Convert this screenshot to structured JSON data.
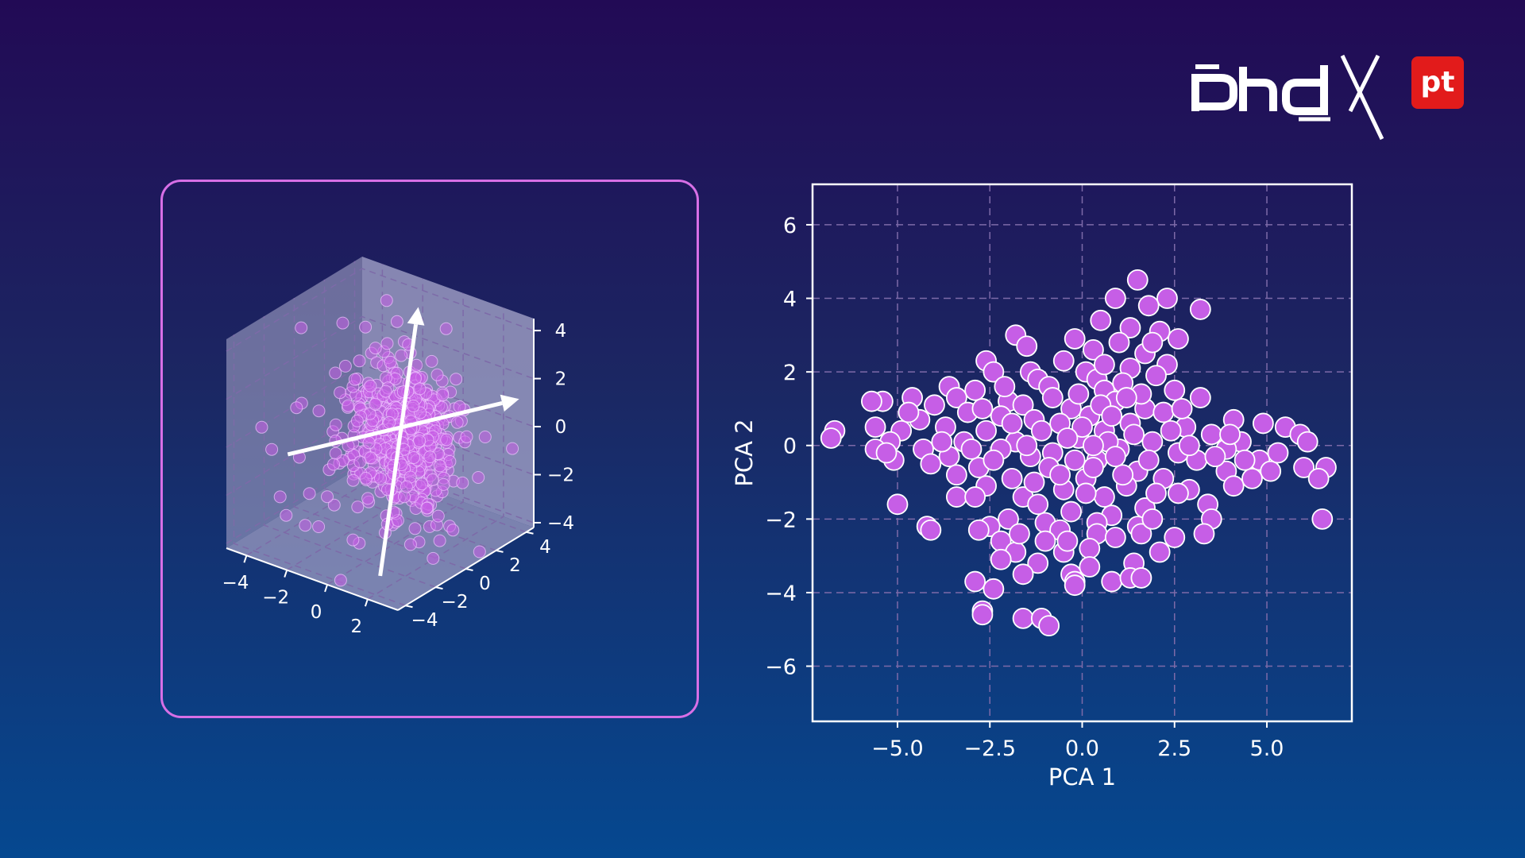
{
  "logo": {
    "text": "phd",
    "badge": "pt"
  },
  "colors": {
    "point_fill": "#c65ee6",
    "point_stroke": "#ffffff",
    "panel_border": "#d76fe6",
    "grid": "#7d6aa8",
    "axis": "#ffffff"
  },
  "chart_data": [
    {
      "type": "scatter",
      "projection": "3d",
      "title": "",
      "x_ticks": [
        "−4",
        "−2",
        "0",
        "2"
      ],
      "y_ticks": [
        "−4",
        "−2",
        "0",
        "2",
        "4"
      ],
      "z_ticks": [
        "−4",
        "−2",
        "0",
        "2",
        "4"
      ],
      "xlim": [
        -5,
        3.5
      ],
      "ylim": [
        -4.5,
        4.5
      ],
      "zlim": [
        -4.2,
        4.5
      ],
      "grid": true,
      "pane_color": "#9e9ec4",
      "point_count": 600,
      "distribution": "gaussian cloud, main spread along z",
      "principal_axes": [
        {
          "from": [
            -4.2,
            -1.5,
            -1.2
          ],
          "to": [
            3.6,
            3.4,
            1.6
          ],
          "arrow": true
        },
        {
          "from": [
            1.2,
            -2.6,
            -4.2
          ],
          "to": [
            -0.8,
            2.6,
            4.4
          ],
          "arrow": true
        }
      ]
    },
    {
      "type": "scatter",
      "title": "",
      "xlabel": "PCA 1",
      "ylabel": "PCA 2",
      "xlim": [
        -7.3,
        7.3
      ],
      "ylim": [
        -7.5,
        7.1
      ],
      "x_ticks": [
        -5.0,
        -2.5,
        0.0,
        2.5,
        5.0
      ],
      "x_tick_labels": [
        "−5.0",
        "−2.5",
        "0.0",
        "2.5",
        "5.0"
      ],
      "y_ticks": [
        6,
        4,
        2,
        0,
        -2,
        -4,
        -6
      ],
      "y_tick_labels": [
        "6",
        "4",
        "2",
        "0",
        "−2",
        "−4",
        "−6"
      ],
      "grid": true,
      "points": [
        [
          1.5,
          4.5
        ],
        [
          2.3,
          4.0
        ],
        [
          0.9,
          4.0
        ],
        [
          1.8,
          3.8
        ],
        [
          3.2,
          3.7
        ],
        [
          0.5,
          3.4
        ],
        [
          1.3,
          3.2
        ],
        [
          2.1,
          3.1
        ],
        [
          -1.8,
          3.0
        ],
        [
          -0.2,
          2.9
        ],
        [
          2.6,
          2.9
        ],
        [
          -1.5,
          2.7
        ],
        [
          1.0,
          2.8
        ],
        [
          0.3,
          2.6
        ],
        [
          1.7,
          2.5
        ],
        [
          -2.6,
          2.3
        ],
        [
          -0.5,
          2.3
        ],
        [
          2.3,
          2.2
        ],
        [
          -1.4,
          2.0
        ],
        [
          0.1,
          2.0
        ],
        [
          1.3,
          2.1
        ],
        [
          -2.4,
          2.0
        ],
        [
          -1.2,
          1.8
        ],
        [
          2.0,
          1.9
        ],
        [
          -3.6,
          1.6
        ],
        [
          0.4,
          1.8
        ],
        [
          -0.9,
          1.6
        ],
        [
          1.1,
          1.7
        ],
        [
          -2.9,
          1.5
        ],
        [
          -4.6,
          1.3
        ],
        [
          -2.0,
          1.2
        ],
        [
          0.6,
          1.5
        ],
        [
          2.5,
          1.5
        ],
        [
          -5.4,
          1.2
        ],
        [
          -5.7,
          1.2
        ],
        [
          -3.4,
          1.3
        ],
        [
          -1.6,
          1.1
        ],
        [
          0.9,
          1.2
        ],
        [
          3.2,
          1.3
        ],
        [
          -4.0,
          1.1
        ],
        [
          -0.3,
          1.0
        ],
        [
          1.7,
          1.0
        ],
        [
          -3.1,
          0.9
        ],
        [
          -2.2,
          0.8
        ],
        [
          0.2,
          0.8
        ],
        [
          2.2,
          0.9
        ],
        [
          -4.4,
          0.7
        ],
        [
          -1.3,
          0.7
        ],
        [
          1.3,
          0.6
        ],
        [
          4.1,
          0.7
        ],
        [
          -5.6,
          0.5
        ],
        [
          -3.7,
          0.5
        ],
        [
          -0.6,
          0.6
        ],
        [
          2.8,
          0.5
        ],
        [
          4.9,
          0.6
        ],
        [
          -6.7,
          0.4
        ],
        [
          -4.9,
          0.4
        ],
        [
          -2.6,
          0.4
        ],
        [
          0.6,
          0.4
        ],
        [
          3.5,
          0.3
        ],
        [
          5.5,
          0.5
        ],
        [
          -6.8,
          0.2
        ],
        [
          -5.2,
          0.1
        ],
        [
          -3.2,
          0.1
        ],
        [
          -1.8,
          0.1
        ],
        [
          -0.1,
          0.2
        ],
        [
          1.9,
          0.1
        ],
        [
          4.3,
          0.1
        ],
        [
          5.9,
          0.3
        ],
        [
          -5.6,
          -0.1
        ],
        [
          -4.3,
          -0.1
        ],
        [
          -2.2,
          -0.1
        ],
        [
          -0.8,
          -0.2
        ],
        [
          1.0,
          -0.1
        ],
        [
          2.6,
          -0.2
        ],
        [
          3.9,
          -0.1
        ],
        [
          6.1,
          0.1
        ],
        [
          -5.1,
          -0.4
        ],
        [
          -3.6,
          -0.3
        ],
        [
          -1.4,
          -0.3
        ],
        [
          0.4,
          -0.4
        ],
        [
          3.1,
          -0.4
        ],
        [
          4.8,
          -0.4
        ],
        [
          6.0,
          -0.6
        ],
        [
          -4.1,
          -0.5
        ],
        [
          -2.8,
          -0.6
        ],
        [
          -0.9,
          -0.6
        ],
        [
          1.5,
          -0.7
        ],
        [
          3.9,
          -0.7
        ],
        [
          5.1,
          -0.7
        ],
        [
          6.6,
          -0.6
        ],
        [
          -3.4,
          -0.8
        ],
        [
          -1.9,
          -0.9
        ],
        [
          0.1,
          -0.9
        ],
        [
          2.2,
          -0.9
        ],
        [
          4.6,
          -0.9
        ],
        [
          6.4,
          -0.9
        ],
        [
          -2.6,
          -1.1
        ],
        [
          -0.5,
          -1.2
        ],
        [
          1.2,
          -1.1
        ],
        [
          2.9,
          -1.2
        ],
        [
          4.1,
          -1.1
        ],
        [
          -3.4,
          -1.4
        ],
        [
          -1.6,
          -1.4
        ],
        [
          0.6,
          -1.4
        ],
        [
          2.6,
          -1.3
        ],
        [
          -5.0,
          -1.6
        ],
        [
          -2.9,
          -1.4
        ],
        [
          -1.2,
          -1.6
        ],
        [
          1.7,
          -1.7
        ],
        [
          3.4,
          -1.6
        ],
        [
          -0.3,
          -1.8
        ],
        [
          0.8,
          -1.9
        ],
        [
          3.5,
          -2.0
        ],
        [
          6.5,
          -2.0
        ],
        [
          -2.0,
          -2.0
        ],
        [
          -1.0,
          -2.1
        ],
        [
          0.4,
          -2.1
        ],
        [
          1.5,
          -2.2
        ],
        [
          -4.2,
          -2.2
        ],
        [
          -4.1,
          -2.3
        ],
        [
          -2.5,
          -2.2
        ],
        [
          -0.6,
          -2.3
        ],
        [
          1.6,
          -2.4
        ],
        [
          -2.8,
          -2.3
        ],
        [
          0.4,
          -2.4
        ],
        [
          3.3,
          -2.4
        ],
        [
          -1.0,
          -2.6
        ],
        [
          2.5,
          -2.5
        ],
        [
          -2.2,
          -2.6
        ],
        [
          0.2,
          -2.8
        ],
        [
          -1.8,
          -2.9
        ],
        [
          -0.5,
          -2.9
        ],
        [
          2.1,
          -2.9
        ],
        [
          -2.2,
          -3.1
        ],
        [
          -1.2,
          -3.2
        ],
        [
          1.4,
          -3.2
        ],
        [
          -1.6,
          -3.5
        ],
        [
          -0.3,
          -3.5
        ],
        [
          0.2,
          -3.3
        ],
        [
          -2.9,
          -3.7
        ],
        [
          -0.2,
          -3.7
        ],
        [
          0.8,
          -3.7
        ],
        [
          1.3,
          -3.6
        ],
        [
          1.6,
          -3.6
        ],
        [
          -2.4,
          -3.9
        ],
        [
          -0.2,
          -3.8
        ],
        [
          -2.7,
          -4.5
        ],
        [
          -2.7,
          -4.6
        ],
        [
          -1.6,
          -4.7
        ],
        [
          -1.1,
          -4.7
        ],
        [
          -0.9,
          -4.9
        ],
        [
          0.0,
          0.5
        ],
        [
          0.3,
          -0.6
        ],
        [
          -0.4,
          0.2
        ],
        [
          0.7,
          0.1
        ],
        [
          1.4,
          0.3
        ],
        [
          -1.1,
          0.4
        ],
        [
          0.9,
          -0.3
        ],
        [
          -0.6,
          -0.8
        ],
        [
          1.8,
          -0.4
        ],
        [
          -1.5,
          0.0
        ],
        [
          2.4,
          0.4
        ],
        [
          -2.4,
          -0.4
        ],
        [
          0.5,
          1.1
        ],
        [
          -0.8,
          1.3
        ],
        [
          1.6,
          1.4
        ],
        [
          0.1,
          -1.3
        ],
        [
          -1.9,
          0.6
        ],
        [
          2.9,
          0.0
        ],
        [
          -3.0,
          -0.1
        ],
        [
          0.3,
          0.0
        ],
        [
          1.1,
          -0.8
        ],
        [
          -0.2,
          -0.4
        ],
        [
          0.8,
          0.8
        ],
        [
          -1.3,
          -1.0
        ],
        [
          2.0,
          -1.3
        ],
        [
          -3.8,
          0.1
        ],
        [
          3.6,
          -0.3
        ],
        [
          0.6,
          2.2
        ],
        [
          1.9,
          2.8
        ],
        [
          -0.1,
          1.4
        ],
        [
          1.2,
          1.3
        ],
        [
          -2.1,
          1.6
        ],
        [
          4.4,
          -0.4
        ],
        [
          5.3,
          -0.2
        ],
        [
          -4.7,
          0.9
        ],
        [
          -5.3,
          -0.2
        ],
        [
          4.0,
          0.3
        ],
        [
          2.7,
          1.0
        ],
        [
          -2.7,
          1.0
        ],
        [
          -1.7,
          -2.4
        ],
        [
          1.9,
          -2.0
        ],
        [
          -0.4,
          -2.6
        ],
        [
          0.9,
          -2.5
        ]
      ]
    }
  ]
}
